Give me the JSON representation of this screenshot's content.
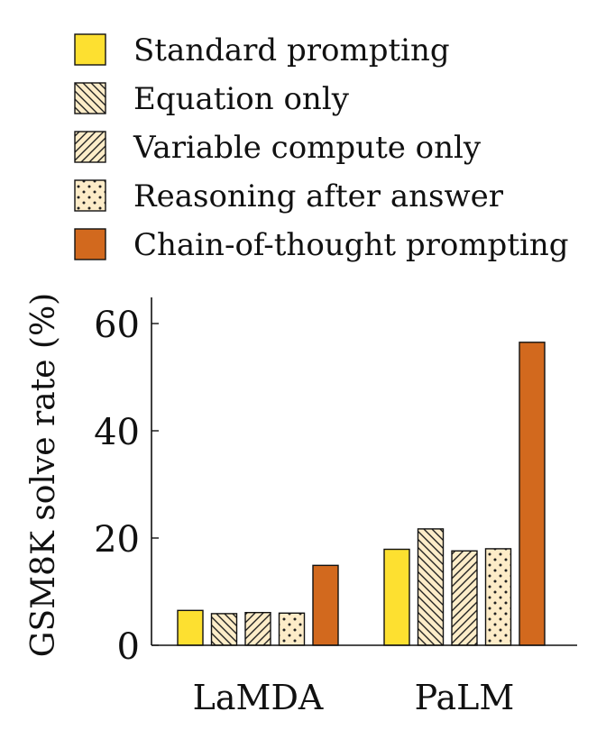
{
  "chart_data": {
    "type": "bar",
    "categories": [
      "LaMDA",
      "PaLM"
    ],
    "series": [
      {
        "name": "Standard prompting",
        "values": [
          6.5,
          17.9
        ],
        "color": "#fde030",
        "pattern": "solid"
      },
      {
        "name": "Equation only",
        "values": [
          5.9,
          21.7
        ],
        "color": "#fdecc8",
        "pattern": "backslash-hatch"
      },
      {
        "name": "Variable compute only",
        "values": [
          6.1,
          17.6
        ],
        "color": "#fdecc8",
        "pattern": "slash-hatch"
      },
      {
        "name": "Reasoning after answer",
        "values": [
          6.0,
          18.0
        ],
        "color": "#fdecc8",
        "pattern": "dots"
      },
      {
        "name": "Chain-of-thought prompting",
        "values": [
          14.9,
          56.5
        ],
        "color": "#d2691e",
        "pattern": "solid"
      }
    ],
    "ylabel": "GSM8K solve rate (%)",
    "yticks": [
      0,
      20,
      40,
      60
    ],
    "ylim": [
      0,
      65
    ],
    "grid": false,
    "legend_position": "top"
  }
}
